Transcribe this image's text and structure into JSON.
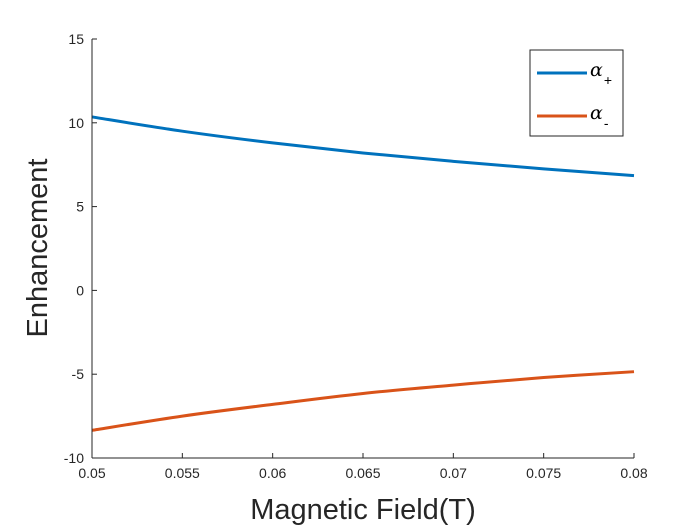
{
  "chart_data": {
    "type": "line",
    "xlabel": "Magnetic Field(T)",
    "ylabel": "Enhancement",
    "xlim": [
      0.05,
      0.08
    ],
    "ylim": [
      -10,
      15
    ],
    "xticks": [
      0.05,
      0.055,
      0.06,
      0.065,
      0.07,
      0.075,
      0.08
    ],
    "xtick_labels": [
      "0.05",
      "0.055",
      "0.06",
      "0.065",
      "0.07",
      "0.075",
      "0.08"
    ],
    "yticks": [
      -10,
      -5,
      0,
      5,
      10,
      15
    ],
    "ytick_labels": [
      "-10",
      "-5",
      "0",
      "5",
      "10",
      "15"
    ],
    "grid": false,
    "legend_position": "top-right",
    "x": [
      0.05,
      0.055,
      0.06,
      0.065,
      0.07,
      0.075,
      0.08
    ],
    "series": [
      {
        "name": "α+",
        "symbol": "α",
        "subscript": "+",
        "color": "#0072BD",
        "values": [
          10.35,
          9.5,
          8.8,
          8.2,
          7.7,
          7.25,
          6.85
        ]
      },
      {
        "name": "α-",
        "symbol": "α",
        "subscript": "-",
        "color": "#D95319",
        "values": [
          -8.35,
          -7.5,
          -6.8,
          -6.15,
          -5.65,
          -5.2,
          -4.85
        ]
      }
    ]
  }
}
